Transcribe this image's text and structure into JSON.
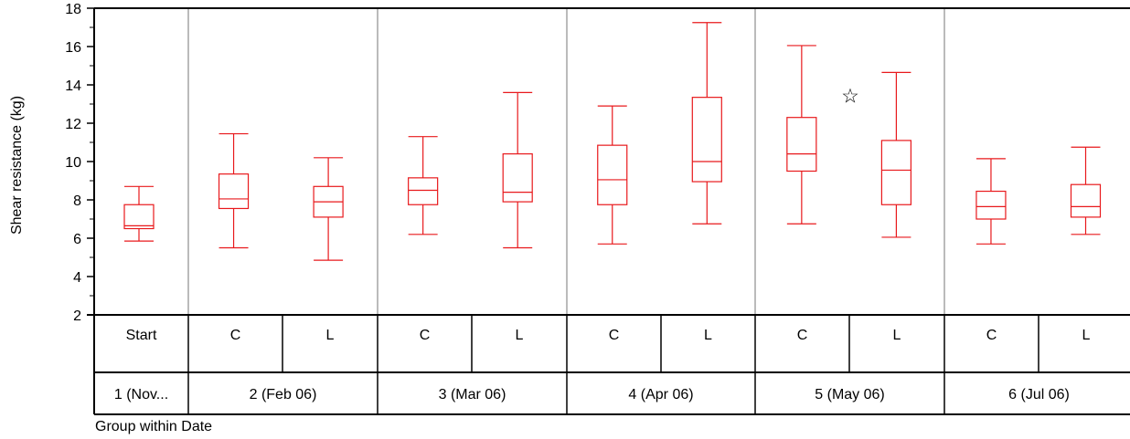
{
  "chart_data": {
    "type": "boxplot",
    "title": "",
    "ylabel": "Shear resistance (kg)",
    "xlabel": "Group within Date",
    "ylim": [
      2,
      18
    ],
    "yticks": [
      2,
      4,
      6,
      8,
      10,
      12,
      14,
      16,
      18
    ],
    "grid": false,
    "colors": {
      "box": "#e8191c",
      "separator": "#bbbbbb",
      "axis": "#000000"
    },
    "groups": [
      {
        "label": "Start",
        "date_index": 0,
        "min": 5.85,
        "q1": 6.5,
        "median": 6.65,
        "q3": 7.75,
        "max": 8.7,
        "outliers": []
      },
      {
        "label": "C",
        "date_index": 1,
        "min": 5.5,
        "q1": 7.55,
        "median": 8.05,
        "q3": 9.35,
        "max": 11.45,
        "outliers": []
      },
      {
        "label": "L",
        "date_index": 1,
        "min": 4.85,
        "q1": 7.1,
        "median": 7.9,
        "q3": 8.7,
        "max": 10.2,
        "outliers": []
      },
      {
        "label": "C",
        "date_index": 2,
        "min": 6.2,
        "q1": 7.75,
        "median": 8.5,
        "q3": 9.15,
        "max": 11.3,
        "outliers": []
      },
      {
        "label": "L",
        "date_index": 2,
        "min": 5.5,
        "q1": 7.9,
        "median": 8.4,
        "q3": 10.4,
        "max": 13.6,
        "outliers": []
      },
      {
        "label": "C",
        "date_index": 3,
        "min": 5.7,
        "q1": 7.75,
        "median": 9.05,
        "q3": 10.85,
        "max": 12.9,
        "outliers": []
      },
      {
        "label": "L",
        "date_index": 3,
        "min": 6.75,
        "q1": 8.95,
        "median": 10.0,
        "q3": 13.35,
        "max": 17.25,
        "outliers": []
      },
      {
        "label": "C",
        "date_index": 4,
        "min": 6.75,
        "q1": 9.5,
        "median": 10.4,
        "q3": 12.3,
        "max": 16.05,
        "outliers": []
      },
      {
        "label": "L",
        "date_index": 4,
        "min": 6.05,
        "q1": 7.75,
        "median": 9.55,
        "q3": 11.1,
        "max": 14.65,
        "outliers": []
      },
      {
        "label": "C",
        "date_index": 5,
        "min": 5.7,
        "q1": 7.0,
        "median": 7.65,
        "q3": 8.45,
        "max": 10.15,
        "outliers": []
      },
      {
        "label": "L",
        "date_index": 5,
        "min": 6.2,
        "q1": 7.1,
        "median": 7.65,
        "q3": 8.8,
        "max": 10.75,
        "outliers": []
      }
    ],
    "dates": [
      {
        "label": "1 (Nov..."
      },
      {
        "label": "2 (Feb 06)"
      },
      {
        "label": "3 (Mar 06)"
      },
      {
        "label": "4 (Apr 06)"
      },
      {
        "label": "5 (May 06)"
      },
      {
        "label": "6 (Jul 06)"
      }
    ],
    "annotations": [
      {
        "symbol": "☆",
        "date_index": 4,
        "value": 13.45
      }
    ]
  }
}
